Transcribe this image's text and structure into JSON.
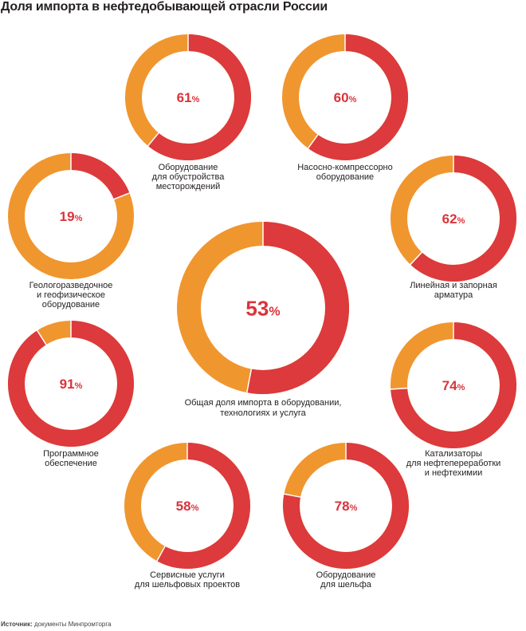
{
  "title": "Доля импорта в нефтедобывающей отрасли России",
  "source": {
    "label": "Источник:",
    "text": "документы Минпромторга"
  },
  "colors": {
    "import": "#dc3a3c",
    "domestic": "#f0962f",
    "value_text": "#d9343a",
    "caption_text": "#231f20"
  },
  "chart_data": {
    "type": "pie",
    "title": "Доля импорта в нефтедобывающей отрасли России",
    "unit": "%",
    "items": [
      {
        "value": 61,
        "caption": [
          "Оборудование",
          "для обустройства",
          "месторождений"
        ]
      },
      {
        "value": 60,
        "caption": [
          "Насосно-компрессорно",
          "оборудование"
        ]
      },
      {
        "value": 19,
        "caption": [
          "Геологоразведочное",
          "и геофизическое",
          "оборудование"
        ]
      },
      {
        "value": 62,
        "caption": [
          "Линейная и запорная",
          "арматура"
        ]
      },
      {
        "value": 53,
        "caption": [
          "Общая доля импорта в оборудовании,",
          "технологиях и услуга"
        ]
      },
      {
        "value": 91,
        "caption": [
          "Программное",
          "обеспечение"
        ]
      },
      {
        "value": 74,
        "caption": [
          "Катализаторы",
          "для нефтепереработки",
          "и нефтехимии"
        ]
      },
      {
        "value": 58,
        "caption": [
          "Сервисные услуги",
          "для шельфовых проектов"
        ]
      },
      {
        "value": 78,
        "caption": [
          "Оборудование",
          "для шельфа"
        ]
      }
    ]
  }
}
